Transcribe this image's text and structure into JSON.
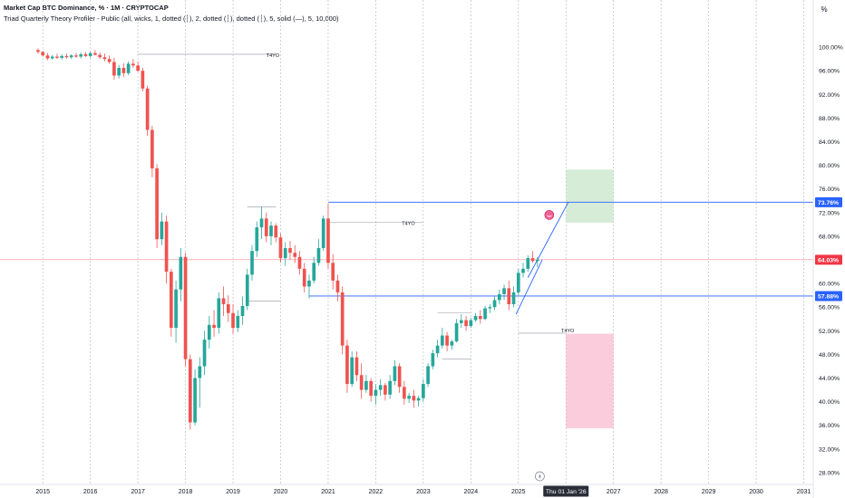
{
  "legend": {
    "title": "Market Cap BTC Dominance, % · 1M · CRYPTOCAP",
    "indicator": "Triad Quarterly Theory Profiler - Public (all, wicks, 1, dotted (┆), 2, dotted (┆), dotted (┆), 5, solid (—), 5, 10,000)"
  },
  "axis": {
    "unit_label": "%"
  },
  "colors": {
    "up": "#26a69a",
    "down": "#ef5350",
    "blue_line": "#2962ff",
    "price_line": "#f23645",
    "green_box": "#c8e6c9",
    "pink_box": "#f8bbd0",
    "grid": "#e0e3eb",
    "text": "#131722"
  },
  "chart_data": {
    "type": "candlestick",
    "title": "Market Cap BTC Dominance, % · 1M · CRYPTOCAP",
    "x_tick_labels": [
      "2015",
      "2016",
      "2017",
      "2018",
      "2019",
      "2020",
      "2021",
      "2022",
      "2023",
      "2024",
      "2025",
      "2027",
      "2028",
      "2029",
      "2030",
      "2031"
    ],
    "y_tick_labels": [
      "100.00%",
      "96.00%",
      "92.00%",
      "88.00%",
      "84.00%",
      "80.00%",
      "76.00%",
      "72.00%",
      "68.00%",
      "64.00%",
      "60.00%",
      "56.00%",
      "52.00%",
      "48.00%",
      "44.00%",
      "40.00%",
      "36.00%",
      "32.00%",
      "28.00%"
    ],
    "y_tick_values": [
      100,
      96,
      92,
      88,
      84,
      80,
      76,
      72,
      68,
      64,
      60,
      56,
      52,
      48,
      44,
      40,
      36,
      32,
      28
    ],
    "xlim": [
      2014.1,
      2031.2
    ],
    "ylim": [
      26,
      104
    ],
    "current_price_label": "64.03%",
    "current_price": 64.03,
    "level_labels": [
      "73.76%",
      "57.88%"
    ],
    "levels": [
      73.76,
      57.88
    ],
    "x_cursor_label": "Thu 01 Jan '26",
    "x_cursor": 2026.0,
    "year_markers": [
      2015,
      2016,
      2017,
      2018,
      2019,
      2020,
      2021,
      2022,
      2023,
      2024,
      2025,
      2026,
      2027,
      2028,
      2029,
      2030,
      2031
    ],
    "annotation_text": "T4YO",
    "annotations": [
      {
        "x": 2019.7,
        "y": 98.8
      },
      {
        "x": 2022.55,
        "y": 70.4
      },
      {
        "x": 2025.9,
        "y": 52.2
      }
    ],
    "t4yo_lines": [
      {
        "x0": 2017.0,
        "x1": 2019.9,
        "y": 98.8
      },
      {
        "x0": 2021.0,
        "x1": 2023.0,
        "y": 70.4
      },
      {
        "x0": 2025.0,
        "x1": 2026.0,
        "y": 51.6
      },
      {
        "x0": 2019.3,
        "x1": 2020.0,
        "y": 57.0
      },
      {
        "x0": 2023.4,
        "x1": 2024.0,
        "y": 47.2
      },
      {
        "x0": 2023.3,
        "x1": 2024.0,
        "y": 55.0
      },
      {
        "x0": 2019.3,
        "x1": 2019.9,
        "y": 73.0
      }
    ],
    "boxes": [
      {
        "name": "target-up",
        "x0": 2026.0,
        "x1": 2027.0,
        "y0": 70.3,
        "y1": 79.3
      },
      {
        "name": "target-down",
        "x0": 2026.0,
        "x1": 2027.0,
        "y0": 35.5,
        "y1": 51.5
      }
    ],
    "trend_lines": [
      {
        "name": "upper",
        "x0": 2025.2,
        "y0": 61.0,
        "x1": 2026.05,
        "y1": 73.76
      },
      {
        "name": "lower",
        "x0": 2024.95,
        "y0": 54.8,
        "x1": 2025.5,
        "y1": 64.0
      }
    ],
    "series": [
      {
        "values": [
          [
            2014.9,
            99.5,
            99.8,
            98.9,
            99.2
          ],
          [
            2015.0,
            99.2,
            99.3,
            98.4,
            98.6
          ],
          [
            2015.1,
            98.6,
            99.0,
            97.8,
            98.1
          ],
          [
            2015.2,
            98.1,
            98.7,
            97.9,
            98.4
          ],
          [
            2015.3,
            98.4,
            98.9,
            98.0,
            98.2
          ],
          [
            2015.4,
            98.2,
            98.8,
            97.9,
            98.5
          ],
          [
            2015.5,
            98.5,
            98.9,
            98.1,
            98.3
          ],
          [
            2015.6,
            98.3,
            98.8,
            98.0,
            98.6
          ],
          [
            2015.7,
            98.6,
            99.0,
            98.2,
            98.4
          ],
          [
            2015.8,
            98.4,
            99.1,
            98.1,
            98.8
          ],
          [
            2015.9,
            98.8,
            99.2,
            98.3,
            98.5
          ],
          [
            2016.0,
            98.5,
            99.3,
            98.2,
            99.0
          ],
          [
            2016.1,
            99.0,
            99.5,
            98.6,
            98.7
          ],
          [
            2016.2,
            98.7,
            99.1,
            98.0,
            98.3
          ],
          [
            2016.3,
            98.3,
            98.9,
            97.6,
            98.0
          ],
          [
            2016.4,
            98.0,
            98.6,
            97.2,
            97.5
          ],
          [
            2016.5,
            97.5,
            98.2,
            94.5,
            95.2
          ],
          [
            2016.6,
            95.2,
            97.0,
            94.7,
            96.5
          ],
          [
            2016.7,
            96.5,
            97.3,
            95.0,
            95.6
          ],
          [
            2016.8,
            95.6,
            97.6,
            95.3,
            97.2
          ],
          [
            2016.9,
            97.2,
            98.0,
            96.5,
            96.9
          ],
          [
            2017.0,
            96.9,
            97.6,
            95.8,
            96.0
          ],
          [
            2017.1,
            96.0,
            96.5,
            92.5,
            93.0
          ],
          [
            2017.2,
            93.0,
            93.5,
            85.0,
            86.0
          ],
          [
            2017.3,
            86.0,
            86.7,
            78.0,
            79.5
          ],
          [
            2017.4,
            79.5,
            80.2,
            66.0,
            67.5
          ],
          [
            2017.5,
            67.5,
            72.0,
            66.5,
            70.5
          ],
          [
            2017.6,
            70.5,
            71.5,
            60.0,
            62.0
          ],
          [
            2017.7,
            62.0,
            62.5,
            51.0,
            52.5
          ],
          [
            2017.8,
            52.5,
            60.5,
            50.0,
            59.0
          ],
          [
            2017.9,
            59.0,
            66.0,
            57.0,
            64.5
          ],
          [
            2018.0,
            64.5,
            65.2,
            46.0,
            47.2
          ],
          [
            2018.1,
            47.2,
            48.0,
            35.3,
            36.5
          ],
          [
            2018.2,
            36.5,
            45.5,
            36.0,
            44.0
          ],
          [
            2018.3,
            44.0,
            47.5,
            39.0,
            46.0
          ],
          [
            2018.4,
            46.0,
            52.0,
            44.5,
            50.5
          ],
          [
            2018.5,
            50.5,
            54.5,
            49.0,
            53.0
          ],
          [
            2018.6,
            53.0,
            55.5,
            51.0,
            52.5
          ],
          [
            2018.7,
            52.5,
            58.5,
            51.5,
            57.5
          ],
          [
            2018.8,
            57.5,
            59.5,
            54.5,
            56.5
          ],
          [
            2018.9,
            56.5,
            58.0,
            53.5,
            55.0
          ],
          [
            2019.0,
            55.0,
            56.5,
            51.5,
            52.5
          ],
          [
            2019.1,
            52.5,
            55.5,
            51.8,
            54.5
          ],
          [
            2019.2,
            54.5,
            57.8,
            53.0,
            56.2
          ],
          [
            2019.3,
            56.2,
            62.5,
            55.5,
            61.5
          ],
          [
            2019.4,
            61.5,
            66.5,
            60.5,
            65.5
          ],
          [
            2019.5,
            65.5,
            70.5,
            64.5,
            69.5
          ],
          [
            2019.6,
            69.5,
            73.0,
            67.5,
            71.0
          ],
          [
            2019.7,
            71.0,
            72.0,
            67.0,
            68.0
          ],
          [
            2019.8,
            68.0,
            70.5,
            66.5,
            69.8
          ],
          [
            2019.9,
            69.8,
            70.2,
            67.0,
            67.8
          ],
          [
            2020.0,
            67.8,
            68.5,
            63.5,
            64.3
          ],
          [
            2020.1,
            64.3,
            67.0,
            63.0,
            66.0
          ],
          [
            2020.2,
            66.0,
            67.2,
            64.0,
            65.2
          ],
          [
            2020.3,
            65.2,
            66.5,
            63.5,
            64.5
          ],
          [
            2020.4,
            64.5,
            65.5,
            61.5,
            62.5
          ],
          [
            2020.5,
            62.5,
            63.5,
            58.5,
            59.5
          ],
          [
            2020.6,
            59.5,
            61.5,
            57.5,
            60.5
          ],
          [
            2020.7,
            60.5,
            64.5,
            60.0,
            63.5
          ],
          [
            2020.8,
            63.5,
            67.5,
            63.0,
            66.0
          ],
          [
            2020.9,
            66.0,
            71.5,
            65.5,
            71.0
          ],
          [
            2021.0,
            71.0,
            73.5,
            62.5,
            63.5
          ],
          [
            2021.1,
            63.5,
            65.0,
            59.0,
            60.5
          ],
          [
            2021.2,
            60.5,
            61.5,
            57.0,
            58.5
          ],
          [
            2021.3,
            58.5,
            59.5,
            48.0,
            49.5
          ],
          [
            2021.4,
            49.5,
            50.5,
            41.5,
            43.0
          ],
          [
            2021.5,
            43.0,
            48.5,
            42.5,
            47.5
          ],
          [
            2021.6,
            47.5,
            48.5,
            43.5,
            44.5
          ],
          [
            2021.7,
            44.5,
            46.5,
            40.5,
            42.0
          ],
          [
            2021.8,
            42.0,
            44.5,
            41.5,
            43.5
          ],
          [
            2021.9,
            43.5,
            44.0,
            40.0,
            41.0
          ],
          [
            2022.0,
            41.0,
            43.0,
            39.5,
            42.0
          ],
          [
            2022.1,
            42.0,
            43.8,
            41.0,
            42.8
          ],
          [
            2022.2,
            42.8,
            43.2,
            40.2,
            41.2
          ],
          [
            2022.3,
            41.2,
            44.5,
            40.5,
            43.5
          ],
          [
            2022.4,
            43.5,
            47.0,
            42.8,
            46.0
          ],
          [
            2022.5,
            46.0,
            46.5,
            41.5,
            42.5
          ],
          [
            2022.6,
            42.5,
            43.5,
            39.5,
            40.5
          ],
          [
            2022.7,
            40.5,
            41.5,
            39.8,
            41.0
          ],
          [
            2022.8,
            41.0,
            42.0,
            39.0,
            40.2
          ],
          [
            2022.9,
            40.2,
            41.0,
            39.2,
            40.6
          ],
          [
            2023.0,
            40.6,
            43.8,
            40.0,
            43.0
          ],
          [
            2023.1,
            43.0,
            46.5,
            42.5,
            46.0
          ],
          [
            2023.2,
            46.0,
            48.8,
            45.5,
            48.2
          ],
          [
            2023.3,
            48.2,
            50.5,
            47.5,
            49.5
          ],
          [
            2023.4,
            49.5,
            52.5,
            49.0,
            51.2
          ],
          [
            2023.5,
            51.2,
            51.8,
            48.5,
            49.5
          ],
          [
            2023.6,
            49.5,
            50.5,
            48.8,
            50.2
          ],
          [
            2023.7,
            50.2,
            54.0,
            50.0,
            53.3
          ],
          [
            2023.8,
            53.3,
            54.8,
            52.5,
            53.8
          ],
          [
            2023.9,
            53.8,
            54.5,
            52.0,
            52.8
          ],
          [
            2024.0,
            52.8,
            54.2,
            52.5,
            53.8
          ],
          [
            2024.1,
            53.8,
            55.0,
            53.5,
            54.5
          ],
          [
            2024.2,
            54.5,
            55.5,
            53.2,
            54.0
          ],
          [
            2024.3,
            54.0,
            56.2,
            53.8,
            55.8
          ],
          [
            2024.4,
            55.8,
            56.5,
            55.0,
            56.0
          ],
          [
            2024.5,
            56.0,
            57.8,
            55.5,
            57.2
          ],
          [
            2024.6,
            57.2,
            59.0,
            56.5,
            58.2
          ],
          [
            2024.7,
            58.2,
            59.8,
            57.2,
            59.2
          ],
          [
            2024.8,
            59.2,
            60.5,
            55.5,
            56.5
          ],
          [
            2024.9,
            56.5,
            59.5,
            56.0,
            58.5
          ],
          [
            2025.0,
            58.5,
            62.5,
            58.0,
            61.8
          ],
          [
            2025.1,
            61.8,
            63.5,
            61.0,
            62.5
          ],
          [
            2025.2,
            62.5,
            64.8,
            62.0,
            64.3
          ],
          [
            2025.3,
            64.3,
            65.5,
            63.5,
            63.8
          ],
          [
            2025.4,
            63.8,
            64.5,
            62.8,
            64.03
          ]
        ]
      }
    ]
  }
}
